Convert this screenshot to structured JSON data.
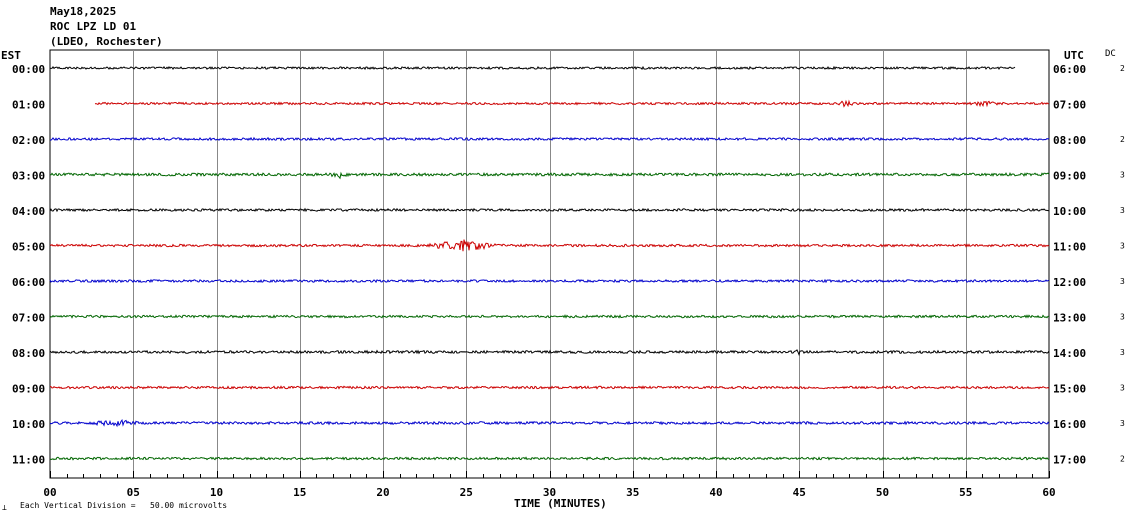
{
  "header": {
    "date": "May18,2025",
    "station": "ROC LPZ LD 01",
    "network": "(LDEO, Rochester)"
  },
  "left_tz": "EST",
  "right_tz": "UTC",
  "dc_label": "DC",
  "xlabel": "TIME (MINUTES)",
  "footer": {
    "scale_text": "Each Vertical Division =   50.00 microvolts"
  },
  "chart_data": {
    "type": "line",
    "title": "May18,2025 ROC LPZ LD 01 (LDEO, Rochester)",
    "xlabel": "TIME (MINUTES)",
    "ylabel": "",
    "xlim": [
      0,
      60
    ],
    "x_ticks": [
      "00",
      "05",
      "10",
      "15",
      "20",
      "25",
      "30",
      "35",
      "40",
      "45",
      "50",
      "55",
      "60"
    ],
    "grid": true,
    "rows": [
      {
        "est": "00:00",
        "utc": "06:00",
        "dc": "2",
        "color": "#000000",
        "start": 0,
        "end": 58,
        "noise": 1.2,
        "events": []
      },
      {
        "est": "01:00",
        "utc": "07:00",
        "dc": "",
        "color": "#cc0000",
        "start": 2.7,
        "end": 60,
        "noise": 1.2,
        "events": [
          {
            "t": 47.8,
            "dur": 0.5,
            "amp": 3
          },
          {
            "t": 56,
            "dur": 1,
            "amp": 2
          }
        ]
      },
      {
        "est": "02:00",
        "utc": "08:00",
        "dc": "2",
        "color": "#0000cc",
        "start": 0,
        "end": 60,
        "noise": 1.3,
        "events": []
      },
      {
        "est": "03:00",
        "utc": "09:00",
        "dc": "3",
        "color": "#006600",
        "start": 0,
        "end": 60,
        "noise": 1.5,
        "events": [
          {
            "t": 17.4,
            "dur": 0.6,
            "amp": 3
          }
        ]
      },
      {
        "est": "04:00",
        "utc": "10:00",
        "dc": "3",
        "color": "#000000",
        "start": 0,
        "end": 60,
        "noise": 1.3,
        "events": []
      },
      {
        "est": "05:00",
        "utc": "11:00",
        "dc": "3",
        "color": "#cc0000",
        "start": 0,
        "end": 60,
        "noise": 1.3,
        "events": [
          {
            "t": 24.8,
            "dur": 2.2,
            "amp": 5.5
          }
        ]
      },
      {
        "est": "06:00",
        "utc": "12:00",
        "dc": "3",
        "color": "#0000cc",
        "start": 0,
        "end": 60,
        "noise": 1.3,
        "events": []
      },
      {
        "est": "07:00",
        "utc": "13:00",
        "dc": "3",
        "color": "#006600",
        "start": 0,
        "end": 60,
        "noise": 1.3,
        "events": []
      },
      {
        "est": "08:00",
        "utc": "14:00",
        "dc": "3",
        "color": "#000000",
        "start": 0,
        "end": 60,
        "noise": 1.4,
        "events": [
          {
            "t": 45,
            "dur": 0.3,
            "amp": 3
          }
        ]
      },
      {
        "est": "09:00",
        "utc": "15:00",
        "dc": "3",
        "color": "#cc0000",
        "start": 0,
        "end": 60,
        "noise": 1.3,
        "events": []
      },
      {
        "est": "10:00",
        "utc": "16:00",
        "dc": "3",
        "color": "#0000cc",
        "start": 0,
        "end": 60,
        "noise": 1.4,
        "events": [
          {
            "t": 4,
            "dur": 2,
            "amp": 2
          }
        ]
      },
      {
        "est": "11:00",
        "utc": "17:00",
        "dc": "2",
        "color": "#006600",
        "start": 0,
        "end": 60,
        "noise": 1.3,
        "events": []
      }
    ]
  }
}
